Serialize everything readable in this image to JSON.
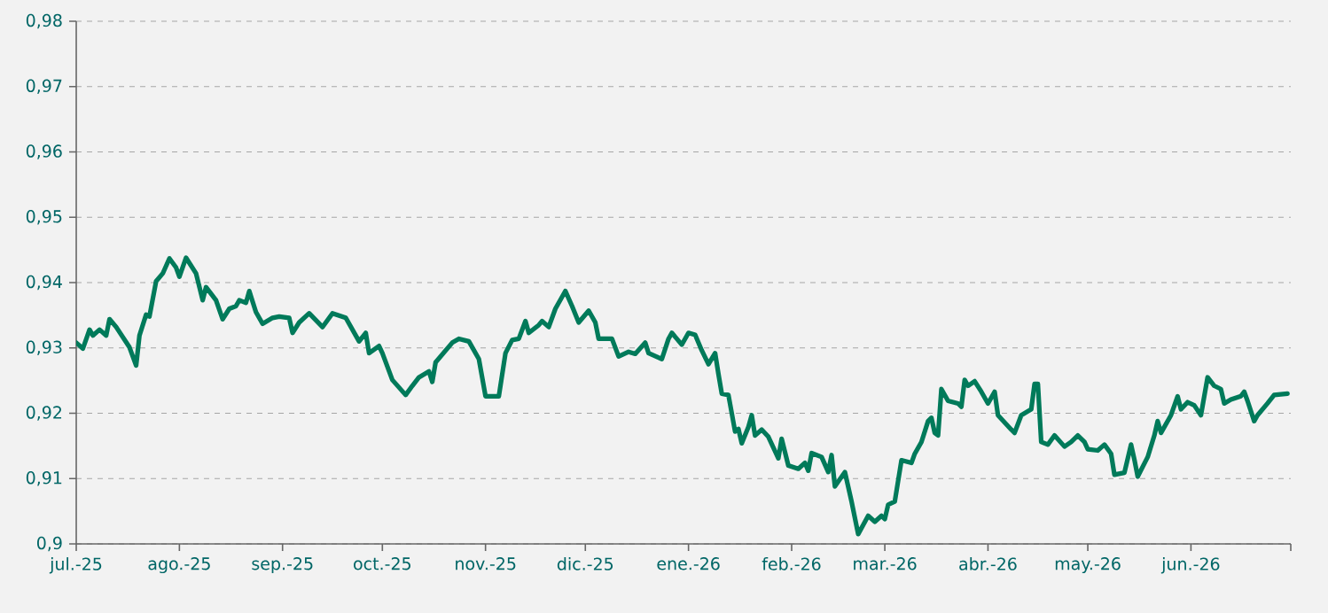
{
  "chart_data": {
    "type": "line",
    "color": "#007a5a",
    "line_style": "solid",
    "grid": "y",
    "xlim": [
      "2025-07-01",
      "2026-07-01"
    ],
    "xticks": [
      {
        "value": "2025-07-01",
        "label": "jul.-25"
      },
      {
        "value": "2025-08-01",
        "label": "ago.-25"
      },
      {
        "value": "2025-09-01",
        "label": "sep.-25"
      },
      {
        "value": "2025-10-01",
        "label": "oct.-25"
      },
      {
        "value": "2025-11-01",
        "label": "nov.-25"
      },
      {
        "value": "2025-12-01",
        "label": "dic.-25"
      },
      {
        "value": "2026-01-01",
        "label": "ene.-26"
      },
      {
        "value": "2026-02-01",
        "label": "feb.-26"
      },
      {
        "value": "2026-03-01",
        "label": "mar.-26"
      },
      {
        "value": "2026-04-01",
        "label": "abr.-26"
      },
      {
        "value": "2026-05-01",
        "label": "may.-26"
      },
      {
        "value": "2026-06-01",
        "label": "jun.-26"
      },
      {
        "value": "2026-07-01",
        "label": null
      }
    ],
    "ylim": [
      0.9,
      0.98
    ],
    "yticks": [
      {
        "value": 0.9,
        "label": "0,9"
      },
      {
        "value": 0.91,
        "label": "0,91"
      },
      {
        "value": 0.92,
        "label": "0,92"
      },
      {
        "value": 0.93,
        "label": "0,93"
      },
      {
        "value": 0.94,
        "label": "0,94"
      },
      {
        "value": 0.95,
        "label": "0,95"
      },
      {
        "value": 0.96,
        "label": "0,96"
      },
      {
        "value": 0.97,
        "label": "0,97"
      },
      {
        "value": 0.98,
        "label": "0,98"
      }
    ],
    "x": [
      "2025-07-01",
      "2025-07-03",
      "2025-07-05",
      "2025-07-06",
      "2025-07-08",
      "2025-07-10",
      "2025-07-11",
      "2025-07-13",
      "2025-07-17",
      "2025-07-19",
      "2025-07-20",
      "2025-07-22",
      "2025-07-23",
      "2025-07-25",
      "2025-07-27",
      "2025-07-29",
      "2025-07-31",
      "2025-08-01",
      "2025-08-03",
      "2025-08-06",
      "2025-08-08",
      "2025-08-09",
      "2025-08-12",
      "2025-08-14",
      "2025-08-16",
      "2025-08-18",
      "2025-08-19",
      "2025-08-21",
      "2025-08-22",
      "2025-08-24",
      "2025-08-26",
      "2025-08-29",
      "2025-08-31",
      "2025-09-03",
      "2025-09-04",
      "2025-09-06",
      "2025-09-09",
      "2025-09-13",
      "2025-09-16",
      "2025-09-20",
      "2025-09-24",
      "2025-09-26",
      "2025-09-27",
      "2025-09-30",
      "2025-10-01",
      "2025-10-04",
      "2025-10-08",
      "2025-10-10",
      "2025-10-12",
      "2025-10-15",
      "2025-10-16",
      "2025-10-17",
      "2025-10-22",
      "2025-10-24",
      "2025-10-27",
      "2025-10-30",
      "2025-11-01",
      "2025-11-05",
      "2025-11-07",
      "2025-11-09",
      "2025-11-11",
      "2025-11-13",
      "2025-11-14",
      "2025-11-17",
      "2025-11-18",
      "2025-11-20",
      "2025-11-22",
      "2025-11-25",
      "2025-11-27",
      "2025-11-29",
      "2025-12-02",
      "2025-12-04",
      "2025-12-05",
      "2025-12-09",
      "2025-12-11",
      "2025-12-14",
      "2025-12-16",
      "2025-12-19",
      "2025-12-20",
      "2025-12-24",
      "2025-12-26",
      "2025-12-27",
      "2025-12-30",
      "2026-01-01",
      "2026-01-03",
      "2026-01-05",
      "2026-01-07",
      "2026-01-09",
      "2026-01-10",
      "2026-01-11",
      "2026-01-13",
      "2026-01-15",
      "2026-01-16",
      "2026-01-17",
      "2026-01-19",
      "2026-01-20",
      "2026-01-21",
      "2026-01-23",
      "2026-01-25",
      "2026-01-28",
      "2026-01-29",
      "2026-01-31",
      "2026-02-03",
      "2026-02-05",
      "2026-02-06",
      "2026-02-07",
      "2026-02-10",
      "2026-02-12",
      "2026-02-13",
      "2026-02-14",
      "2026-02-17",
      "2026-02-19",
      "2026-02-21",
      "2026-02-24",
      "2026-02-26",
      "2026-02-28",
      "2026-03-01",
      "2026-03-02",
      "2026-03-04",
      "2026-03-06",
      "2026-03-09",
      "2026-03-10",
      "2026-03-12",
      "2026-03-14",
      "2026-03-15",
      "2026-03-16",
      "2026-03-17",
      "2026-03-18",
      "2026-03-20",
      "2026-03-23",
      "2026-03-24",
      "2026-03-25",
      "2026-03-26",
      "2026-03-28",
      "2026-03-30",
      "2026-04-01",
      "2026-04-03",
      "2026-04-04",
      "2026-04-08",
      "2026-04-09",
      "2026-04-11",
      "2026-04-14",
      "2026-04-15",
      "2026-04-16",
      "2026-04-17",
      "2026-04-19",
      "2026-04-21",
      "2026-04-24",
      "2026-04-26",
      "2026-04-28",
      "2026-04-30",
      "2026-05-01",
      "2026-05-04",
      "2026-05-06",
      "2026-05-08",
      "2026-05-09",
      "2026-05-12",
      "2026-05-14",
      "2026-05-15",
      "2026-05-16",
      "2026-05-19",
      "2026-05-21",
      "2026-05-22",
      "2026-05-23",
      "2026-05-26",
      "2026-05-28",
      "2026-05-29",
      "2026-05-31",
      "2026-06-02",
      "2026-06-04",
      "2026-06-06",
      "2026-06-08",
      "2026-06-10",
      "2026-06-11",
      "2026-06-13",
      "2026-06-16",
      "2026-06-17",
      "2026-06-18",
      "2026-06-20",
      "2026-06-21",
      "2026-06-24",
      "2026-06-26",
      "2026-06-30"
    ],
    "values": [
      0.9308,
      0.9299,
      0.9328,
      0.9319,
      0.9328,
      0.9319,
      0.9344,
      0.9332,
      0.9301,
      0.9273,
      0.9319,
      0.9351,
      0.9348,
      0.9402,
      0.9414,
      0.9437,
      0.9423,
      0.9409,
      0.9438,
      0.9414,
      0.9373,
      0.9393,
      0.9373,
      0.9344,
      0.936,
      0.9364,
      0.9373,
      0.9369,
      0.9387,
      0.9355,
      0.9337,
      0.9346,
      0.9348,
      0.9346,
      0.9323,
      0.9339,
      0.9353,
      0.9332,
      0.9353,
      0.9346,
      0.931,
      0.9323,
      0.9292,
      0.9303,
      0.9292,
      0.9251,
      0.9228,
      0.9242,
      0.9255,
      0.9264,
      0.9248,
      0.9278,
      0.9308,
      0.9314,
      0.931,
      0.9283,
      0.9226,
      0.9226,
      0.9292,
      0.9312,
      0.9314,
      0.9341,
      0.9323,
      0.9335,
      0.9341,
      0.9332,
      0.936,
      0.9387,
      0.9364,
      0.9339,
      0.9357,
      0.9339,
      0.9314,
      0.9314,
      0.9287,
      0.9294,
      0.9291,
      0.9308,
      0.9292,
      0.9283,
      0.9314,
      0.9323,
      0.9305,
      0.9323,
      0.932,
      0.9296,
      0.9275,
      0.9292,
      0.926,
      0.923,
      0.9228,
      0.9172,
      0.9176,
      0.9154,
      0.9179,
      0.9197,
      0.9166,
      0.9175,
      0.9164,
      0.9131,
      0.9161,
      0.912,
      0.9115,
      0.9124,
      0.9112,
      0.9139,
      0.9133,
      0.911,
      0.9136,
      0.9088,
      0.911,
      0.9065,
      0.9015,
      0.9043,
      0.9034,
      0.9043,
      0.9038,
      0.906,
      0.9065,
      0.9128,
      0.9124,
      0.9138,
      0.9156,
      0.9188,
      0.9193,
      0.917,
      0.9166,
      0.9237,
      0.9219,
      0.9215,
      0.921,
      0.9251,
      0.9242,
      0.9249,
      0.9233,
      0.9215,
      0.9233,
      0.9197,
      0.9175,
      0.917,
      0.9197,
      0.9206,
      0.9245,
      0.9245,
      0.9156,
      0.9152,
      0.9166,
      0.9149,
      0.9156,
      0.9166,
      0.9156,
      0.9145,
      0.9143,
      0.9152,
      0.9138,
      0.9106,
      0.9109,
      0.9152,
      0.9129,
      0.9103,
      0.9133,
      0.9166,
      0.9188,
      0.917,
      0.9197,
      0.9226,
      0.9206,
      0.9217,
      0.9212,
      0.9197,
      0.9255,
      0.9242,
      0.9237,
      0.9215,
      0.9221,
      0.9226,
      0.9233,
      0.9219,
      0.9188,
      0.9197,
      0.9215,
      0.9228,
      0.923
    ]
  }
}
